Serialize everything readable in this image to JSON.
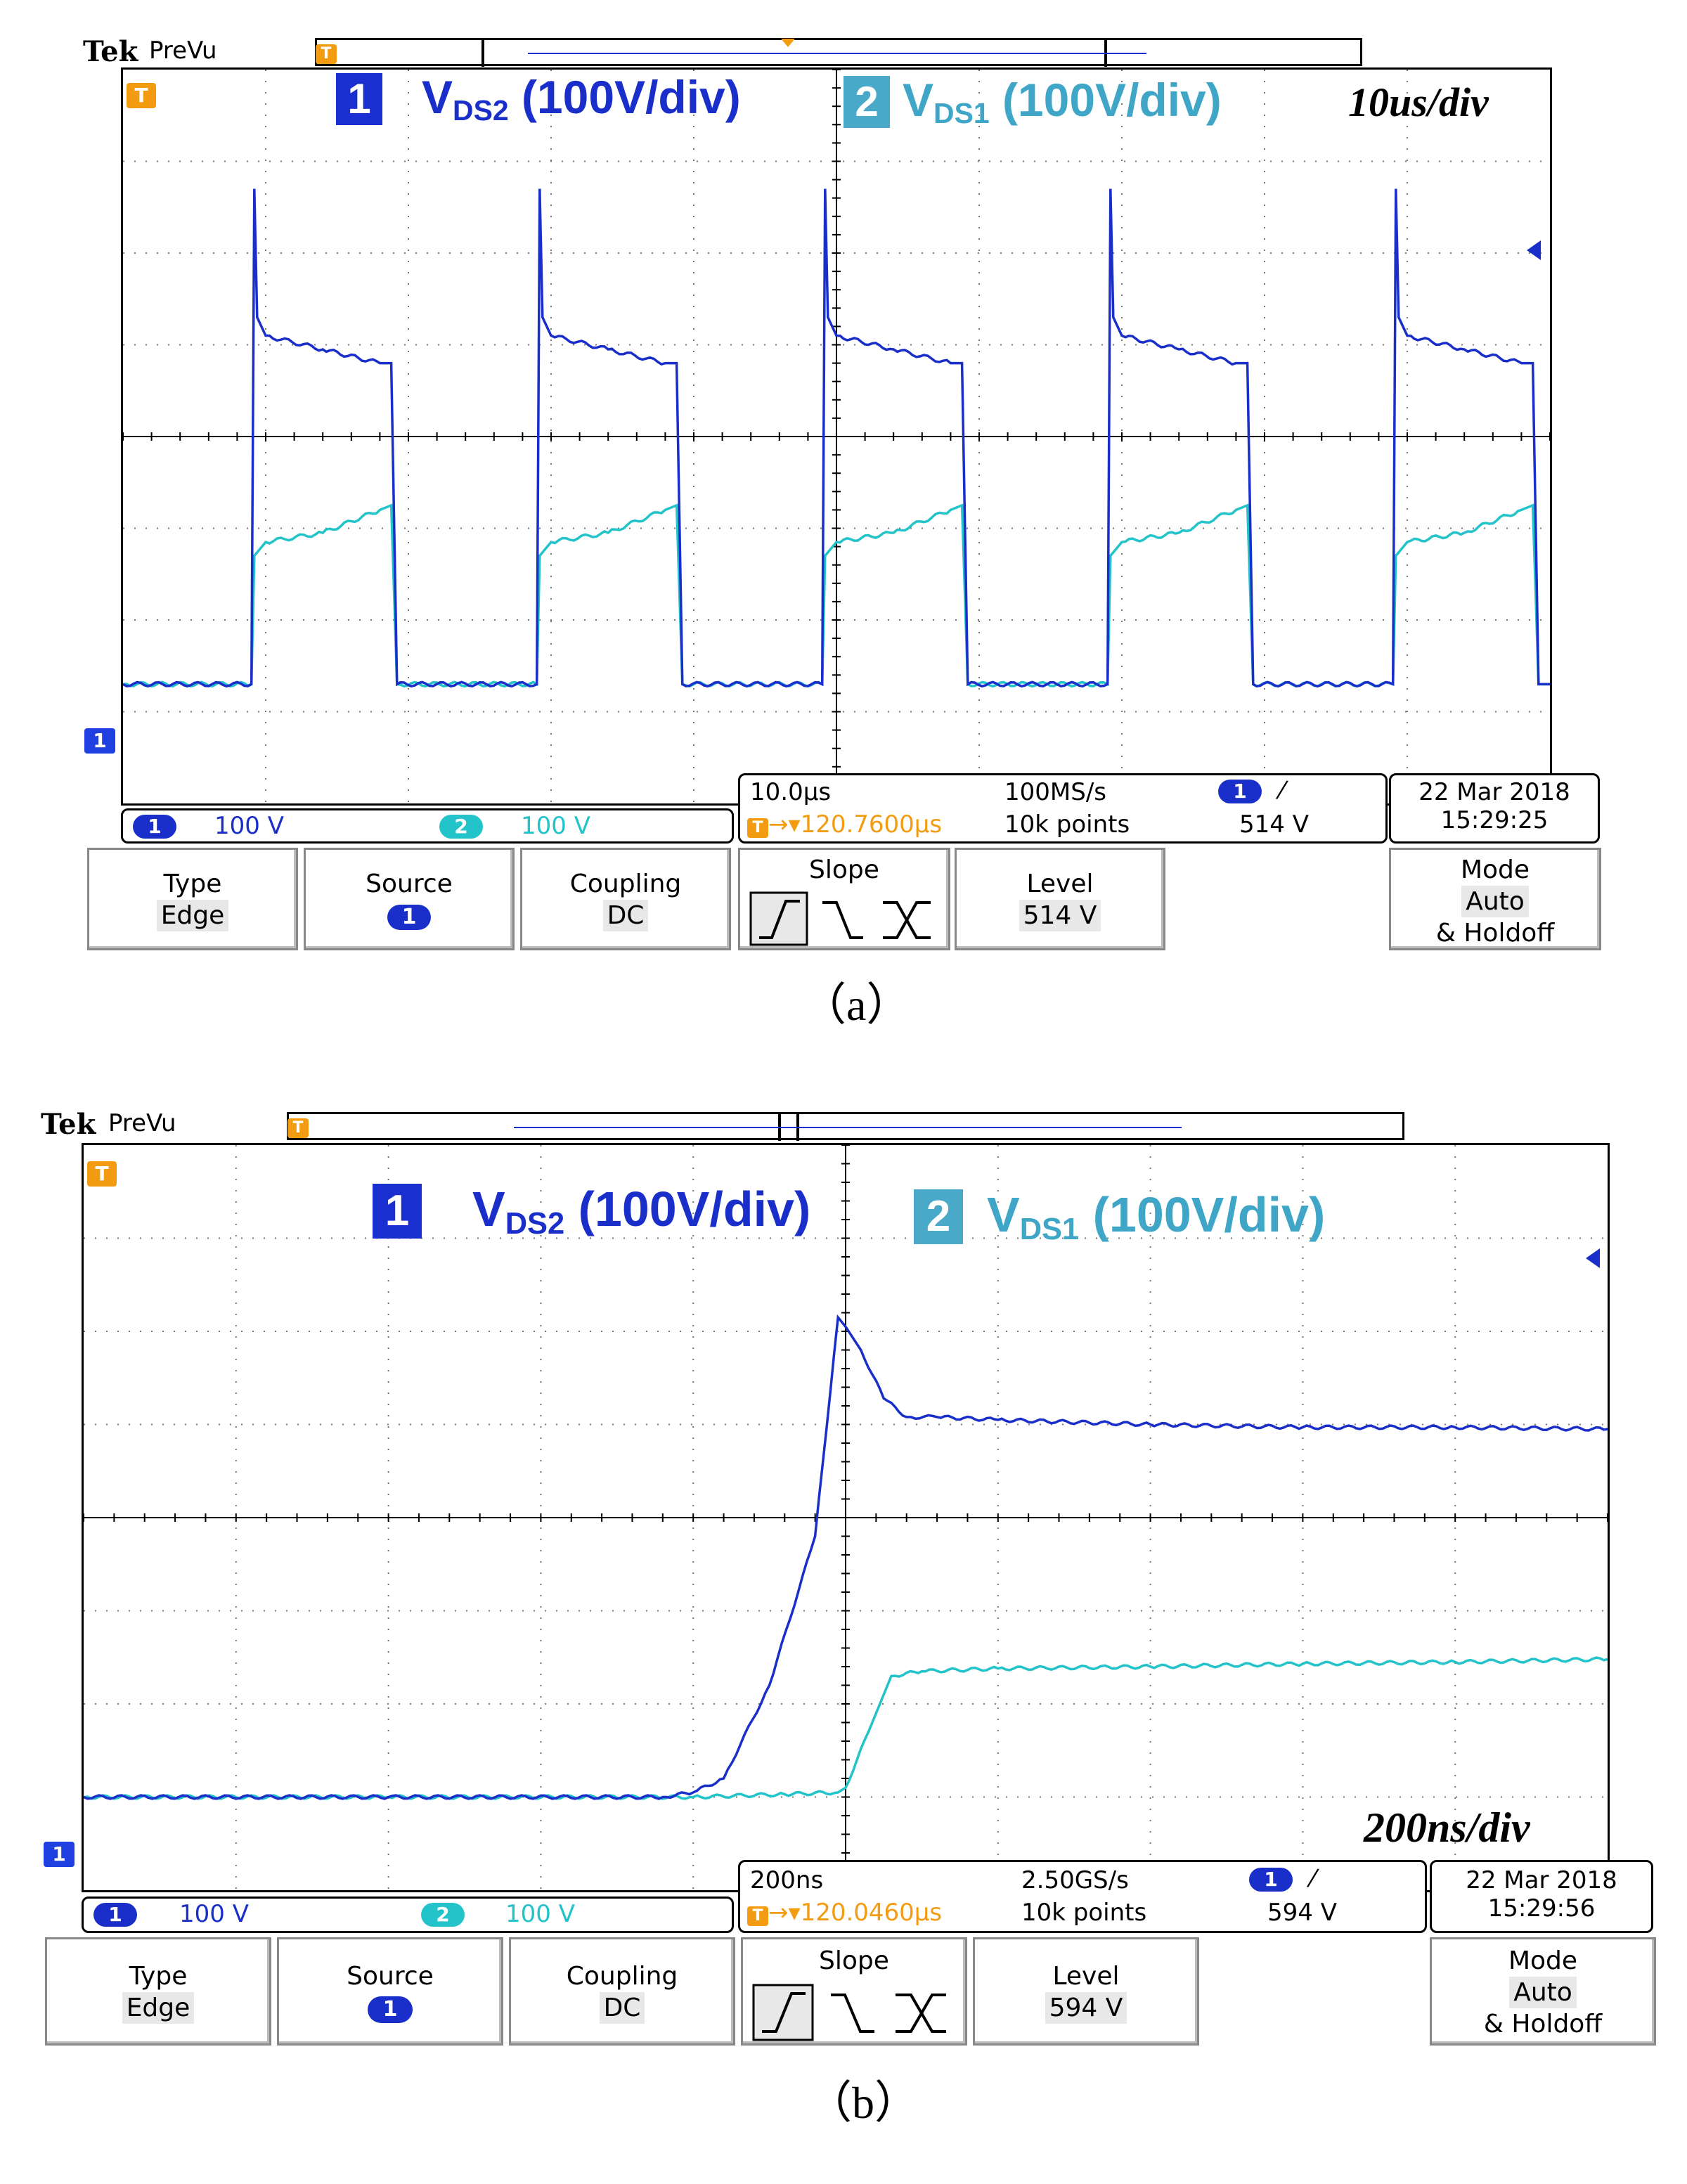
{
  "panels": [
    {
      "caption": "（a）",
      "header": {
        "brand": "Tek",
        "mode": "PreVu",
        "trigger_marker": "T"
      },
      "labels": {
        "ch1_num": "1",
        "ch1_name": "V",
        "ch1_sub": "DS2",
        "ch1_scale": " (100V/div)",
        "ch2_num": "2",
        "ch2_name": "V",
        "ch2_sub": "DS1",
        "ch2_scale": " (100V/div)",
        "timediv": "10us/div"
      },
      "status": {
        "ch1_num": "1",
        "ch1_scale": "100 V",
        "ch2_num": "2",
        "ch2_scale": "100 V",
        "timebase": "10.0µs",
        "trigger_pos": "120.7600µs",
        "sample_rate": "100MS/s",
        "record_length": "10k points",
        "trig_source": "1",
        "trig_level": "514 V",
        "date": "22 Mar  2018",
        "time": "15:29:25"
      },
      "menu": {
        "type_title": "Type",
        "type_value": "Edge",
        "source_title": "Source",
        "source_value": "1",
        "coupling_title": "Coupling",
        "coupling_value": "DC",
        "slope_title": "Slope",
        "level_title": "Level",
        "level_value": "514 V",
        "mode_title": "Mode",
        "mode_value": "Auto",
        "mode_sub": "& Holdoff"
      }
    },
    {
      "caption": "（b）",
      "header": {
        "brand": "Tek",
        "mode": "PreVu",
        "trigger_marker": "T"
      },
      "labels": {
        "ch1_num": "1",
        "ch1_name": "V",
        "ch1_sub": "DS2",
        "ch1_scale": " (100V/div)",
        "ch2_num": "2",
        "ch2_name": "V",
        "ch2_sub": "DS1",
        "ch2_scale": " (100V/div)",
        "timediv": "200ns/div"
      },
      "status": {
        "ch1_num": "1",
        "ch1_scale": "100 V",
        "ch2_num": "2",
        "ch2_scale": "100 V",
        "timebase": "200ns",
        "trigger_pos": "120.0460µs",
        "sample_rate": "2.50GS/s",
        "record_length": "10k points",
        "trig_source": "1",
        "trig_level": "594 V",
        "date": "22 Mar  2018",
        "time": "15:29:56"
      },
      "menu": {
        "type_title": "Type",
        "type_value": "Edge",
        "source_title": "Source",
        "source_value": "1",
        "coupling_title": "Coupling",
        "coupling_value": "DC",
        "slope_title": "Slope",
        "level_title": "Level",
        "level_value": "594 V",
        "mode_title": "Mode",
        "mode_value": "Auto",
        "mode_sub": "& Holdoff"
      }
    }
  ],
  "colors": {
    "ch1": "#1a2fc9",
    "ch2": "#22c3c9",
    "label_ch1_box": "#1a2fd0",
    "label_ch2_box": "#4aa8c8",
    "label_ch2_text": "#3fa6c8",
    "trigger": "#f39c12"
  },
  "chart_data": [
    {
      "type": "line",
      "title": "",
      "x_unit": "div",
      "y_unit": "V",
      "xlim": [
        0,
        10
      ],
      "ylim": [
        -400,
        400
      ],
      "series": [
        {
          "name": "VDS2",
          "x": [
            0.0,
            0.9,
            0.92,
            0.94,
            1.0,
            1.4,
            1.8,
            1.88,
            1.92,
            2.9,
            2.92,
            2.94,
            3.0,
            3.4,
            3.8,
            3.88,
            3.92,
            4.9,
            4.92,
            4.94,
            5.0,
            5.4,
            5.8,
            5.88,
            5.92,
            6.9,
            6.92,
            6.94,
            7.0,
            7.4,
            7.8,
            7.88,
            7.92,
            8.9,
            8.92,
            8.94,
            9.0,
            9.4,
            9.8,
            9.88,
            9.92,
            10.0
          ],
          "y": [
            -270,
            -270,
            270,
            130,
            110,
            95,
            80,
            80,
            -270,
            -270,
            270,
            130,
            110,
            95,
            80,
            80,
            -270,
            -270,
            270,
            130,
            110,
            95,
            80,
            80,
            -270,
            -270,
            270,
            130,
            110,
            95,
            80,
            80,
            -270,
            -270,
            270,
            130,
            110,
            95,
            80,
            80,
            -270,
            -270
          ]
        },
        {
          "name": "VDS1",
          "x": [
            0.0,
            0.9,
            0.92,
            1.0,
            1.4,
            1.8,
            1.88,
            1.92,
            2.9,
            2.92,
            3.0,
            3.4,
            3.8,
            3.88,
            3.92,
            4.9,
            4.92,
            5.0,
            5.4,
            5.8,
            5.88,
            5.92,
            6.9,
            6.92,
            7.0,
            7.4,
            7.8,
            7.88,
            7.92,
            8.9,
            8.92,
            9.0,
            9.4,
            9.8,
            9.88,
            9.92,
            10.0
          ],
          "y": [
            -270,
            -270,
            -130,
            -115,
            -105,
            -80,
            -75,
            -270,
            -270,
            -130,
            -115,
            -105,
            -80,
            -75,
            -270,
            -270,
            -130,
            -115,
            -105,
            -80,
            -75,
            -270,
            -270,
            -130,
            -115,
            -105,
            -80,
            -75,
            -270,
            -270,
            -130,
            -115,
            -105,
            -80,
            -75,
            -270,
            -270
          ]
        }
      ]
    },
    {
      "type": "line",
      "title": "",
      "x_unit": "div",
      "y_unit": "V",
      "xlim": [
        0,
        10
      ],
      "ylim": [
        -400,
        400
      ],
      "series": [
        {
          "name": "VDS2",
          "x": [
            0.0,
            2.0,
            3.8,
            4.0,
            4.2,
            4.5,
            4.8,
            4.95,
            5.0,
            5.1,
            5.25,
            5.4,
            5.6,
            6.0,
            7.0,
            8.0,
            9.0,
            10.0
          ],
          "y": [
            -300,
            -300,
            -300,
            -295,
            -280,
            -180,
            -20,
            215,
            205,
            180,
            128,
            108,
            108,
            105,
            100,
            97,
            97,
            95
          ]
        },
        {
          "name": "VDS1",
          "x": [
            0.0,
            2.0,
            4.0,
            4.6,
            4.95,
            5.0,
            5.15,
            5.3,
            5.5,
            6.0,
            7.0,
            8.0,
            9.0,
            10.0
          ],
          "y": [
            -300,
            -300,
            -300,
            -297,
            -295,
            -290,
            -230,
            -170,
            -165,
            -162,
            -160,
            -157,
            -155,
            -152
          ]
        }
      ]
    }
  ]
}
